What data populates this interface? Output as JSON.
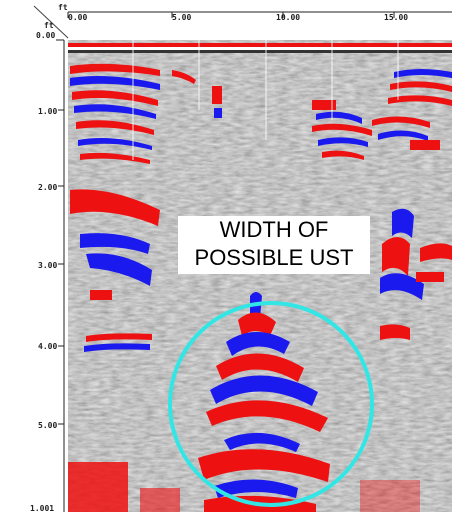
{
  "figure": {
    "x_unit": "ft",
    "y_unit": "ft",
    "x_ticks": [
      "0.00",
      "5.00",
      "10.00",
      "15.00"
    ],
    "y_ticks": [
      "0.00",
      "1.00",
      "2.00",
      "3.00",
      "4.00",
      "5.00"
    ],
    "bottom_label": "1.001"
  },
  "annotation": {
    "line1": "WIDTH OF",
    "line2": "POSSIBLE UST"
  },
  "colors": {
    "positive": "#ee1111",
    "negative": "#1a1aee",
    "highlight_circle": "#33e6e6",
    "background": "#bdbdbd"
  }
}
